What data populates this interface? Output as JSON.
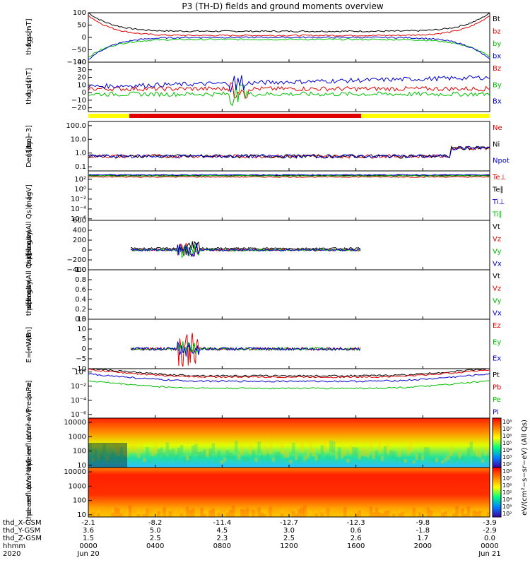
{
  "title": "P3 (TH-D) fields and ground moments overview",
  "x_axis": {
    "rows": [
      {
        "label": "thd_X-GSM",
        "values": [
          "-2.1",
          "-8.2",
          "-11.4",
          "-12.7",
          "-12.3",
          "-9.8",
          "-3.9"
        ]
      },
      {
        "label": "thd_Y-GSM",
        "values": [
          "3.6",
          "5.0",
          "4.5",
          "3.0",
          "0.6",
          "-1.8",
          "-2.9"
        ]
      },
      {
        "label": "thd_Z-GSM",
        "values": [
          "1.5",
          "2.5",
          "2.3",
          "2.5",
          "2.6",
          "1.7",
          "0.0"
        ]
      },
      {
        "label": "hhmm",
        "values": [
          "0000",
          "0400",
          "0800",
          "1200",
          "1600",
          "2000",
          "0000"
        ]
      },
      {
        "label": "2020",
        "values": [
          "Jun 20",
          "",
          "",
          "",
          "",
          "",
          "Jun 21"
        ]
      }
    ]
  },
  "colors": {
    "black": "#000000",
    "red": "#e00000",
    "green": "#00c000",
    "blue": "#0000d0",
    "yellow": "#ffff00",
    "barred": "#e00000"
  },
  "panels": [
    {
      "id": "fgs-gsm",
      "ylabel": [
        "thd",
        "fgs",
        "gsm",
        "[nT]"
      ],
      "ticks": [
        "100",
        "50",
        "0",
        "−50",
        "−100"
      ],
      "tick_values": [
        100,
        50,
        0,
        -50,
        -100
      ],
      "yrange": [
        -100,
        100
      ],
      "legend": [
        {
          "t": "Bt",
          "c": "black"
        },
        {
          "t": "bz",
          "c": "red"
        },
        {
          "t": "by",
          "c": "green"
        },
        {
          "t": "bx",
          "c": "blue"
        }
      ]
    },
    {
      "id": "fgs-dsl",
      "ylabel": [
        "thd",
        "fgs",
        "dsl",
        "[nT]"
      ],
      "ticks": [
        "40",
        "30",
        "20",
        "10",
        "0",
        "−10",
        "−20"
      ],
      "tick_values": [
        40,
        30,
        20,
        10,
        0,
        -10,
        -20
      ],
      "yrange": [
        -25,
        40
      ],
      "legend": [
        {
          "t": "Bz",
          "c": "red"
        },
        {
          "t": "By",
          "c": "green"
        },
        {
          "t": "Bx",
          "c": "blue"
        }
      ]
    },
    {
      "id": "density",
      "ylabel": [
        "Density",
        "[1/cc]",
        "[cm−3]"
      ],
      "ticks": [
        "100.0",
        "10.0",
        "1.0",
        "0.1"
      ],
      "tick_values": [
        100,
        10,
        1,
        0.1
      ],
      "yrange": [
        0.05,
        200
      ],
      "log": true,
      "legend": [
        {
          "t": "Ne",
          "c": "red"
        },
        {
          "t": "Ni",
          "c": "black"
        },
        {
          "t": "Npot",
          "c": "blue"
        }
      ]
    },
    {
      "id": "temp",
      "ylabel": [
        "mag",
        "[eV]"
      ],
      "ticks": [
        "10²",
        "10⁰",
        "10⁻²",
        "10⁻⁴",
        "10⁻⁶"
      ],
      "tick_values": [
        100,
        1,
        0.01,
        0.0001,
        1e-06
      ],
      "yrange": [
        5e-07,
        5000
      ],
      "log": true,
      "legend": [
        {
          "t": "Te⊥",
          "c": "red"
        },
        {
          "t": "Te∥",
          "c": "black"
        },
        {
          "t": "Ti⊥",
          "c": "blue"
        },
        {
          "t": "Ti∥",
          "c": "green"
        }
      ]
    },
    {
      "id": "peir-vel",
      "ylabel": [
        "thd",
        "peir",
        "velocity",
        "gsm",
        "[km/s (All Qs)]"
      ],
      "ticks": [
        "600",
        "400",
        "200",
        "0",
        "−200",
        "−400"
      ],
      "tick_values": [
        600,
        400,
        200,
        0,
        -200,
        -400
      ],
      "yrange": [
        -400,
        600
      ],
      "legend": [
        {
          "t": "Vt",
          "c": "black"
        },
        {
          "t": "Vz",
          "c": "red"
        },
        {
          "t": "Vy",
          "c": "green"
        },
        {
          "t": "Vx",
          "c": "blue"
        }
      ]
    },
    {
      "id": "peer-vel",
      "ylabel": [
        "thd",
        "peer",
        "velocity",
        "gsm",
        "[km/s (All Qs)]"
      ],
      "ticks": [
        "1.0",
        "0.8",
        "0.6",
        "0.4",
        "0.2",
        "0.0"
      ],
      "tick_values": [
        1,
        0.8,
        0.6,
        0.4,
        0.2,
        0
      ],
      "yrange": [
        0,
        1
      ],
      "legend": [
        {
          "t": "Vt",
          "c": "black"
        },
        {
          "t": "Vz",
          "c": "red"
        },
        {
          "t": "Vy",
          "c": "green"
        },
        {
          "t": "Vx",
          "c": "blue"
        }
      ]
    },
    {
      "id": "efield",
      "ylabel": [
        "E=−VxB",
        "[mV/m]"
      ],
      "ticks": [
        "15",
        "10",
        "5",
        "0",
        "−5",
        "−10"
      ],
      "tick_values": [
        15,
        10,
        5,
        0,
        -5,
        -10
      ],
      "yrange": [
        -10,
        15
      ],
      "legend": [
        {
          "t": "Ez",
          "c": "red"
        },
        {
          "t": "Ey",
          "c": "green"
        },
        {
          "t": "Ex",
          "c": "blue"
        }
      ]
    },
    {
      "id": "pressure",
      "ylabel": [
        "Pressure",
        "[nPa]"
      ],
      "ticks": [
        "10⁰",
        "10⁻²",
        "10⁻⁴",
        "10⁻⁶"
      ],
      "tick_values": [
        1,
        0.01,
        0.0001,
        1e-06
      ],
      "yrange": [
        3e-07,
        3
      ],
      "log": true,
      "legend": [
        {
          "t": "Pt",
          "c": "black"
        },
        {
          "t": "Pb",
          "c": "red"
        },
        {
          "t": "Pe",
          "c": "green"
        },
        {
          "t": "Pi",
          "c": "blue"
        }
      ]
    },
    {
      "id": "peir-en",
      "ylabel": [
        "thd",
        "peir",
        "en",
        "eflux",
        "eV",
        "(cm²-s-",
        "sr-eV)"
      ],
      "ticks": [
        "10000",
        "1000",
        "100",
        "10"
      ],
      "tick_values": [
        10000,
        1000,
        100,
        10
      ],
      "yrange": [
        7,
        20000
      ],
      "log": true,
      "spectrogram": true,
      "legend": []
    },
    {
      "id": "peer-en",
      "ylabel": [
        "thd",
        "peer",
        "en",
        "eflux",
        "eV",
        "(cm²-s-",
        "sr-eV)"
      ],
      "ticks": [
        "10000",
        "1000",
        "100",
        "10"
      ],
      "tick_values": [
        10000,
        1000,
        100,
        10
      ],
      "yrange": [
        7,
        20000
      ],
      "log": true,
      "spectrogram": true,
      "legend": []
    }
  ],
  "colorbar": {
    "ticks": [
      "10⁸",
      "10⁷",
      "10⁶",
      "10⁵",
      "10⁴",
      "10³",
      "10²"
    ],
    "label": "eV/(cm²−s−sr−eV) (All Qs)"
  },
  "chart_data": {
    "type": "line",
    "title": "P3 (TH-D) fields and ground moments overview",
    "x_range_hhmm": [
      "0000",
      "2400"
    ],
    "series_summary": [
      {
        "panel": "fgs-gsm",
        "name": "Bt",
        "values_nT": [
          100,
          40,
          25,
          20,
          25,
          35,
          100
        ]
      },
      {
        "panel": "fgs-gsm",
        "name": "bz",
        "values_nT": [
          90,
          20,
          10,
          5,
          10,
          20,
          95
        ]
      },
      {
        "panel": "fgs-gsm",
        "name": "by",
        "values_nT": [
          -80,
          -20,
          -5,
          -5,
          -10,
          -15,
          -30
        ]
      },
      {
        "panel": "fgs-gsm",
        "name": "bx",
        "values_nT": [
          -90,
          -10,
          5,
          0,
          -10,
          -20,
          -80
        ]
      }
    ]
  }
}
